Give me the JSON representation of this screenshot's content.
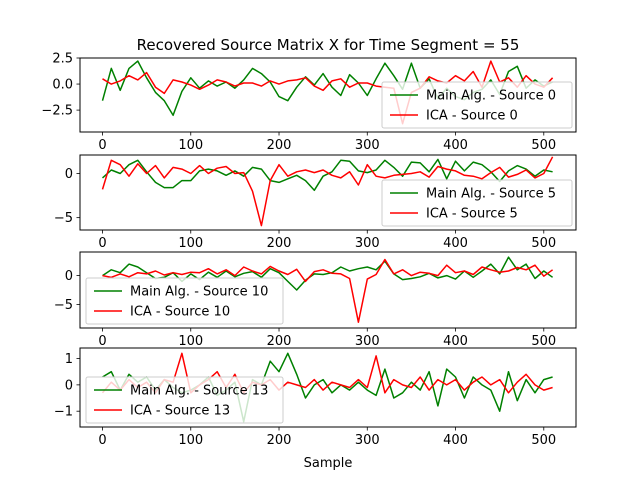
{
  "chart_data": {
    "title": "Recovered Source Matrix X for Time Segment = 55",
    "xlabel": "Sample",
    "xlim": [
      -25.5,
      536.5
    ],
    "xticks": [
      0,
      100,
      200,
      300,
      400,
      500
    ],
    "xtick_labels": [
      "0",
      "100",
      "200",
      "300",
      "400",
      "500"
    ],
    "colors": {
      "main": "#008000",
      "ica": "#ff0000"
    },
    "subplots": [
      {
        "type": "line",
        "ylim": [
          -4.6,
          2.5
        ],
        "yticks": [
          2.5,
          0.0,
          -2.5
        ],
        "ytick_labels": [
          "2.5",
          "0.0",
          "−2.5"
        ],
        "legend_loc": "lower-right",
        "series": [
          {
            "name": "Main Alg. - Source 0",
            "color": "#008000",
            "x": [
              0,
              10,
              20,
              30,
              40,
              50,
              60,
              70,
              80,
              90,
              100,
              110,
              120,
              130,
              140,
              150,
              160,
              170,
              180,
              190,
              200,
              210,
              220,
              230,
              240,
              250,
              260,
              270,
              280,
              290,
              300,
              310,
              320,
              330,
              340,
              350,
              360,
              370,
              380,
              390,
              400,
              410,
              420,
              430,
              440,
              450,
              460,
              470,
              480,
              490,
              500,
              510
            ],
            "y": [
              -1.6,
              1.5,
              -0.6,
              1.5,
              2.2,
              0.6,
              -0.8,
              -1.6,
              -3.0,
              -0.7,
              0.6,
              -0.4,
              0.3,
              -0.2,
              0.2,
              -0.4,
              0.4,
              1.5,
              1.0,
              0.2,
              -1.2,
              -1.6,
              -0.3,
              0.7,
              -0.1,
              1.0,
              -0.3,
              -1.1,
              0.9,
              0.1,
              -1.1,
              0.5,
              2.0,
              0.8,
              -0.5,
              2.0,
              -0.4,
              0.5,
              -1.4,
              -0.4,
              -1.2,
              -1.5,
              -0.8,
              -0.5,
              0.4,
              -1.0,
              1.2,
              1.7,
              -0.4,
              0.4,
              -0.2,
              0.2
            ]
          },
          {
            "name": "ICA - Source 0",
            "color": "#ff0000",
            "x": [
              0,
              10,
              20,
              30,
              40,
              50,
              60,
              70,
              80,
              90,
              100,
              110,
              120,
              130,
              140,
              150,
              160,
              170,
              180,
              190,
              200,
              210,
              220,
              230,
              240,
              250,
              260,
              270,
              280,
              290,
              300,
              310,
              320,
              330,
              340,
              350,
              360,
              370,
              380,
              390,
              400,
              410,
              420,
              430,
              440,
              450,
              460,
              470,
              480,
              490,
              500,
              510
            ],
            "y": [
              0.5,
              0.0,
              0.3,
              0.8,
              0.4,
              1.1,
              -0.3,
              -0.9,
              0.4,
              0.2,
              -0.1,
              -0.5,
              -0.1,
              0.4,
              0.2,
              -0.2,
              0.1,
              0.1,
              -0.2,
              0.3,
              0.0,
              0.3,
              0.4,
              0.6,
              -0.2,
              -0.6,
              0.3,
              0.5,
              -0.3,
              0.1,
              0.1,
              -0.2,
              -0.3,
              -0.4,
              -3.8,
              -0.8,
              -0.4,
              0.7,
              0.3,
              0.1,
              0.8,
              0.3,
              1.2,
              -0.3,
              2.2,
              0.2,
              0.6,
              -0.3,
              0.8,
              0.0,
              -0.3,
              0.6
            ]
          }
        ]
      },
      {
        "type": "line",
        "ylim": [
          -6.4,
          2.1
        ],
        "yticks": [
          0,
          -5
        ],
        "ytick_labels": [
          "0",
          "−5"
        ],
        "legend_loc": "lower-right",
        "series": [
          {
            "name": "Main Alg. - Source 5",
            "color": "#008000",
            "x": [
              0,
              10,
              20,
              30,
              40,
              50,
              60,
              70,
              80,
              90,
              100,
              110,
              120,
              130,
              140,
              150,
              160,
              170,
              180,
              190,
              200,
              210,
              220,
              230,
              240,
              250,
              260,
              270,
              280,
              290,
              300,
              310,
              320,
              330,
              340,
              350,
              360,
              370,
              380,
              390,
              400,
              410,
              420,
              430,
              440,
              450,
              460,
              470,
              480,
              490,
              500,
              510
            ],
            "y": [
              -0.5,
              0.4,
              0.0,
              1.0,
              1.5,
              0.2,
              -1.0,
              -1.6,
              -1.6,
              -0.8,
              -0.8,
              0.3,
              0.5,
              0.3,
              -0.2,
              0.3,
              -0.3,
              0.7,
              0.5,
              -0.8,
              -1.0,
              -0.6,
              -0.2,
              -0.8,
              -1.9,
              -0.3,
              0.2,
              1.5,
              1.4,
              0.3,
              0.1,
              0.4,
              1.5,
              0.7,
              -0.3,
              1.3,
              1.2,
              0.2,
              1.6,
              -0.6,
              1.4,
              0.3,
              1.3,
              1.0,
              0.2,
              -0.9,
              0.3,
              0.9,
              0.5,
              -0.3,
              0.4,
              0.2
            ]
          },
          {
            "name": "ICA - Source 5",
            "color": "#ff0000",
            "x": [
              0,
              10,
              20,
              30,
              40,
              50,
              60,
              70,
              80,
              90,
              100,
              110,
              120,
              130,
              140,
              150,
              160,
              170,
              180,
              190,
              200,
              210,
              220,
              230,
              240,
              250,
              260,
              270,
              280,
              290,
              300,
              310,
              320,
              330,
              340,
              350,
              360,
              370,
              380,
              390,
              400,
              410,
              420,
              430,
              440,
              450,
              460,
              470,
              480,
              490,
              500,
              510
            ],
            "y": [
              -1.8,
              1.5,
              1.0,
              -0.3,
              1.1,
              0.0,
              0.9,
              -0.5,
              0.7,
              0.5,
              0.0,
              0.9,
              0.0,
              0.6,
              0.8,
              0.0,
              0.1,
              -2.0,
              -5.9,
              -0.8,
              1.0,
              -0.3,
              0.2,
              0.4,
              0.1,
              0.4,
              -0.2,
              -0.5,
              0.2,
              -1.3,
              1.0,
              -0.3,
              -0.5,
              -0.2,
              -0.1,
              0.0,
              0.2,
              -0.4,
              0.8,
              0.5,
              0.3,
              -0.2,
              -0.3,
              -0.6,
              0.1,
              0.7,
              -0.4,
              -0.1,
              0.4,
              -0.5,
              0.0,
              1.9
            ]
          }
        ]
      },
      {
        "type": "line",
        "ylim": [
          -9.1,
          4.1
        ],
        "yticks": [
          0,
          -5
        ],
        "ytick_labels": [
          "0",
          "−5"
        ],
        "legend_loc": "lower-left",
        "series": [
          {
            "name": "Main Alg. - Source 10",
            "color": "#008000",
            "x": [
              0,
              10,
              20,
              30,
              40,
              50,
              60,
              70,
              80,
              90,
              100,
              110,
              120,
              130,
              140,
              150,
              160,
              170,
              180,
              190,
              200,
              210,
              220,
              230,
              240,
              250,
              260,
              270,
              280,
              290,
              300,
              310,
              320,
              330,
              340,
              350,
              360,
              370,
              380,
              390,
              400,
              410,
              420,
              430,
              440,
              450,
              460,
              470,
              480,
              490,
              500,
              510
            ],
            "y": [
              0.0,
              1.0,
              0.5,
              2.0,
              1.5,
              0.5,
              -0.5,
              -0.3,
              0.5,
              -1.0,
              0.3,
              -0.7,
              0.6,
              -0.3,
              0.8,
              -0.2,
              0.4,
              0.7,
              -0.3,
              1.2,
              0.5,
              -1.0,
              -2.5,
              -0.8,
              0.3,
              0.2,
              0.5,
              1.5,
              0.8,
              1.2,
              1.5,
              1.0,
              2.5,
              0.3,
              -0.7,
              -0.5,
              -0.2,
              0.4,
              -0.4,
              0.0,
              -0.6,
              0.8,
              -0.3,
              0.8,
              2.0,
              0.3,
              3.2,
              1.0,
              2.0,
              -0.5,
              0.8,
              -0.3
            ]
          },
          {
            "name": "ICA - Source 10",
            "color": "#ff0000",
            "x": [
              0,
              10,
              20,
              30,
              40,
              50,
              60,
              70,
              80,
              90,
              100,
              110,
              120,
              130,
              140,
              150,
              160,
              170,
              180,
              190,
              200,
              210,
              220,
              230,
              240,
              250,
              260,
              270,
              280,
              290,
              300,
              310,
              320,
              330,
              340,
              350,
              360,
              370,
              380,
              390,
              400,
              410,
              420,
              430,
              440,
              450,
              460,
              470,
              480,
              490,
              500,
              510
            ],
            "y": [
              0.0,
              -0.3,
              0.3,
              -0.2,
              0.5,
              0.3,
              0.8,
              0.1,
              0.5,
              0.2,
              0.6,
              0.5,
              1.2,
              0.3,
              1.0,
              0.0,
              1.5,
              0.8,
              0.3,
              1.6,
              0.8,
              0.2,
              1.1,
              -1.0,
              0.7,
              1.0,
              0.4,
              0.3,
              -0.5,
              -8.1,
              -0.6,
              0.2,
              2.8,
              0.3,
              1.0,
              0.0,
              0.6,
              0.4,
              0.0,
              1.8,
              0.5,
              0.8,
              0.2,
              1.5,
              1.0,
              0.6,
              0.8,
              1.4,
              1.0,
              1.8,
              -0.1,
              1.0
            ]
          }
        ]
      },
      {
        "type": "line",
        "ylim": [
          -1.6,
          1.4
        ],
        "yticks": [
          1,
          0,
          -1
        ],
        "ytick_labels": [
          "1",
          "0",
          "−1"
        ],
        "legend_loc": "lower-left",
        "series": [
          {
            "name": "Main Alg. - Source 13",
            "color": "#008000",
            "x": [
              0,
              10,
              20,
              30,
              40,
              50,
              60,
              70,
              80,
              90,
              100,
              110,
              120,
              130,
              140,
              150,
              160,
              170,
              180,
              190,
              200,
              210,
              220,
              230,
              240,
              250,
              260,
              270,
              280,
              290,
              300,
              310,
              320,
              330,
              340,
              350,
              360,
              370,
              380,
              390,
              400,
              410,
              420,
              430,
              440,
              450,
              460,
              470,
              480,
              490,
              500,
              510
            ],
            "y": [
              0.3,
              0.5,
              -0.2,
              0.4,
              0.1,
              0.3,
              -0.2,
              0.2,
              -0.1,
              -0.3,
              -0.2,
              0.0,
              0.3,
              -0.4,
              -0.2,
              0.1,
              -1.4,
              0.2,
              0.0,
              0.9,
              0.5,
              1.2,
              0.4,
              -0.5,
              0.0,
              0.2,
              -0.3,
              0.0,
              -0.2,
              0.1,
              -0.2,
              -0.4,
              0.6,
              -0.5,
              -0.3,
              0.1,
              -0.2,
              0.5,
              -0.8,
              0.6,
              0.3,
              -0.5,
              0.3,
              0.0,
              -0.2,
              -1.0,
              0.5,
              -0.6,
              0.2,
              -0.3,
              0.2,
              0.3
            ]
          },
          {
            "name": "ICA - Source 13",
            "color": "#ff0000",
            "x": [
              0,
              10,
              20,
              30,
              40,
              50,
              60,
              70,
              80,
              90,
              100,
              110,
              120,
              130,
              140,
              150,
              160,
              170,
              180,
              190,
              200,
              210,
              220,
              230,
              240,
              250,
              260,
              270,
              280,
              290,
              300,
              310,
              320,
              330,
              340,
              350,
              360,
              370,
              380,
              390,
              400,
              410,
              420,
              430,
              440,
              450,
              460,
              470,
              480,
              490,
              500,
              510
            ],
            "y": [
              -0.3,
              0.1,
              -0.2,
              0.2,
              -0.1,
              0.1,
              -0.3,
              0.2,
              0.1,
              1.2,
              -0.3,
              0.0,
              0.2,
              0.5,
              -0.1,
              0.4,
              -0.3,
              0.1,
              0.0,
              0.2,
              -0.2,
              0.1,
              0.0,
              -0.1,
              0.2,
              -0.2,
              0.1,
              0.0,
              -0.1,
              0.2,
              -0.1,
              1.1,
              -0.3,
              0.2,
              0.0,
              -0.1,
              0.3,
              -0.2,
              0.2,
              0.0,
              0.2,
              -0.2,
              0.1,
              0.3,
              0.0,
              0.2,
              -0.3,
              0.1,
              0.4,
              0.0,
              -0.2,
              -0.1
            ]
          }
        ]
      }
    ]
  }
}
